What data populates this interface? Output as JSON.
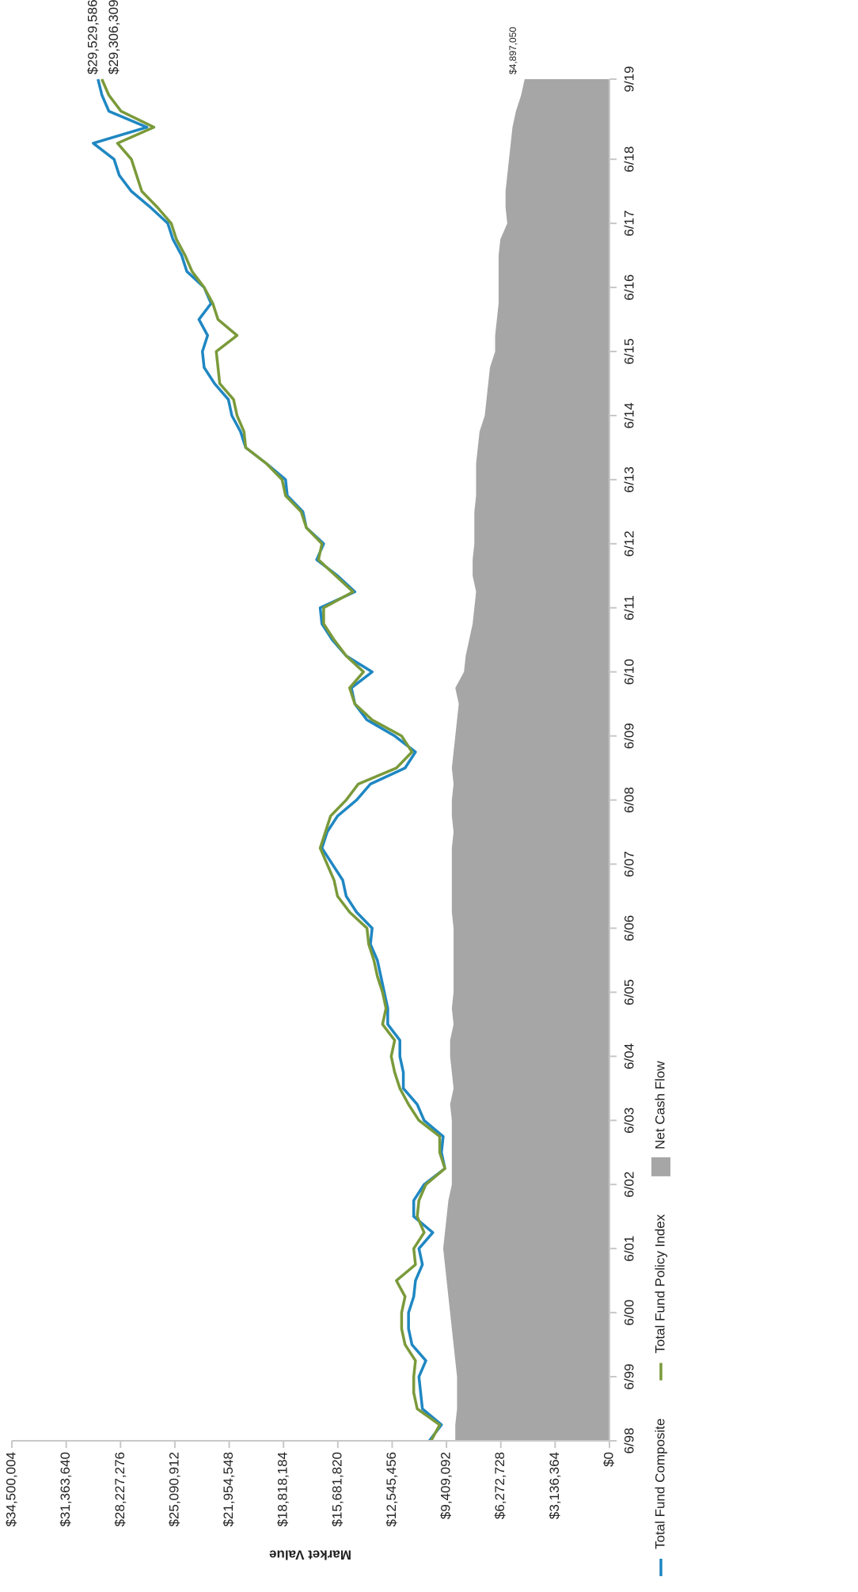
{
  "chart_data": {
    "type": "line",
    "y_label": "Market Value",
    "categories": [
      "6/98",
      null,
      null,
      null,
      "6/99",
      null,
      null,
      null,
      "6/00",
      null,
      null,
      null,
      "6/01",
      null,
      null,
      null,
      "6/02",
      null,
      null,
      null,
      "6/03",
      null,
      null,
      null,
      "6/04",
      null,
      null,
      null,
      "6/05",
      null,
      null,
      null,
      "6/06",
      null,
      null,
      null,
      "6/07",
      null,
      null,
      null,
      "6/08",
      null,
      null,
      null,
      "6/09",
      null,
      null,
      null,
      "6/10",
      null,
      null,
      null,
      "6/11",
      null,
      null,
      null,
      "6/12",
      null,
      null,
      null,
      "6/13",
      null,
      null,
      null,
      "6/14",
      null,
      null,
      null,
      "6/15",
      null,
      null,
      null,
      "6/16",
      null,
      null,
      null,
      "6/17",
      null,
      null,
      null,
      "6/18",
      null,
      null,
      null,
      null,
      "9/19"
    ],
    "ylim": [
      0,
      34500004
    ],
    "yticks": [
      {
        "value": 0,
        "label": "$0"
      },
      {
        "value": 3136364,
        "label": "$3,136,364"
      },
      {
        "value": 6272728,
        "label": "$6,272,728"
      },
      {
        "value": 9409092,
        "label": "$9,409,092"
      },
      {
        "value": 12545456,
        "label": "$12,545,456"
      },
      {
        "value": 15681820,
        "label": "$15,681,820"
      },
      {
        "value": 18818184,
        "label": "$18,818,184"
      },
      {
        "value": 21954548,
        "label": "$21,954,548"
      },
      {
        "value": 25090912,
        "label": "$25,090,912"
      },
      {
        "value": 28227276,
        "label": "$28,227,276"
      },
      {
        "value": 31363640,
        "label": "$31,363,640"
      },
      {
        "value": 34500004,
        "label": "$34,500,004"
      }
    ],
    "legend": "bottom-left",
    "series": [
      {
        "name": "Total Fund Composite",
        "type": "line",
        "color": "#1f87c2",
        "values": [
          10400000,
          9700000,
          10800000,
          10900000,
          11000000,
          10600000,
          11400000,
          11600000,
          11600000,
          11300000,
          11200000,
          10800000,
          11000000,
          10200000,
          11300000,
          11300000,
          10700000,
          9500000,
          9700000,
          9600000,
          10700000,
          11100000,
          11900000,
          11900000,
          12100000,
          12100000,
          12800000,
          12800000,
          13000000,
          13200000,
          13400000,
          13800000,
          13700000,
          14600000,
          15200000,
          15400000,
          16000000,
          16600000,
          16300000,
          15700000,
          14600000,
          13800000,
          11800000,
          11200000,
          12400000,
          14000000,
          14700000,
          14900000,
          13700000,
          15200000,
          16000000,
          16600000,
          16700000,
          14700000,
          15700000,
          16900000,
          16500000,
          17500000,
          17700000,
          18600000,
          18700000,
          19800000,
          21000000,
          21300000,
          21800000,
          22000000,
          22800000,
          23400000,
          23500000,
          23200000,
          23700000,
          23000000,
          23400000,
          24400000,
          24700000,
          25200000,
          25500000,
          26500000,
          27600000,
          28300000,
          28600000,
          29800000,
          26700000,
          28900000,
          29300000,
          29529586
        ],
        "value_labels": {
          "85": "$29,529,586"
        }
      },
      {
        "name": "Total Fund Policy Index",
        "type": "line",
        "color": "#7a9a3a",
        "values": [
          10300000,
          9800000,
          11100000,
          11300000,
          11300000,
          11200000,
          11800000,
          12000000,
          12000000,
          11800000,
          12300000,
          11200000,
          11300000,
          10700000,
          11100000,
          11000000,
          10600000,
          9500000,
          9800000,
          9800000,
          11000000,
          11600000,
          12100000,
          12400000,
          12600000,
          12400000,
          13100000,
          12900000,
          13100000,
          13400000,
          13600000,
          13900000,
          14000000,
          15000000,
          15700000,
          15900000,
          16300000,
          16700000,
          16400000,
          16100000,
          15200000,
          14500000,
          12300000,
          11400000,
          12000000,
          13700000,
          14700000,
          15000000,
          14200000,
          15200000,
          15900000,
          16500000,
          16500000,
          14800000,
          15800000,
          16800000,
          16600000,
          17500000,
          17800000,
          18700000,
          18900000,
          19800000,
          21000000,
          21100000,
          21500000,
          21700000,
          22500000,
          22600000,
          22700000,
          21500000,
          22600000,
          22900000,
          23400000,
          24100000,
          24500000,
          25000000,
          25300000,
          26100000,
          27000000,
          27300000,
          27600000,
          28400000,
          26300000,
          28200000,
          28900000,
          29306309
        ],
        "value_labels": {
          "85": "$29,306,309"
        }
      },
      {
        "name": "Net Cash Flow",
        "type": "area",
        "color": "#a6a6a6",
        "values": [
          8900000,
          8900000,
          8800000,
          8800000,
          8800000,
          8900000,
          9000000,
          9100000,
          9200000,
          9300000,
          9400000,
          9500000,
          9600000,
          9500000,
          9400000,
          9300000,
          9100000,
          9100000,
          9100000,
          9100000,
          9100000,
          9200000,
          9000000,
          9100000,
          9200000,
          9200000,
          9000000,
          9100000,
          9000000,
          9000000,
          9000000,
          9000000,
          9000000,
          9100000,
          9100000,
          9100000,
          9100000,
          9100000,
          9000000,
          9100000,
          9100000,
          9000000,
          9100000,
          9000000,
          8900000,
          8800000,
          8700000,
          8900000,
          8400000,
          8300000,
          8100000,
          7900000,
          7800000,
          7700000,
          7900000,
          7900000,
          7800000,
          7800000,
          7800000,
          7700000,
          7700000,
          7700000,
          7600000,
          7500000,
          7200000,
          7100000,
          7000000,
          6900000,
          6600000,
          6600000,
          6500000,
          6400000,
          6400000,
          6400000,
          6400000,
          6300000,
          5900000,
          6000000,
          6000000,
          5900000,
          5800000,
          5700000,
          5600000,
          5400000,
          5100000,
          4897050
        ],
        "value_labels": {
          "85": "$4,897,050"
        }
      }
    ]
  }
}
